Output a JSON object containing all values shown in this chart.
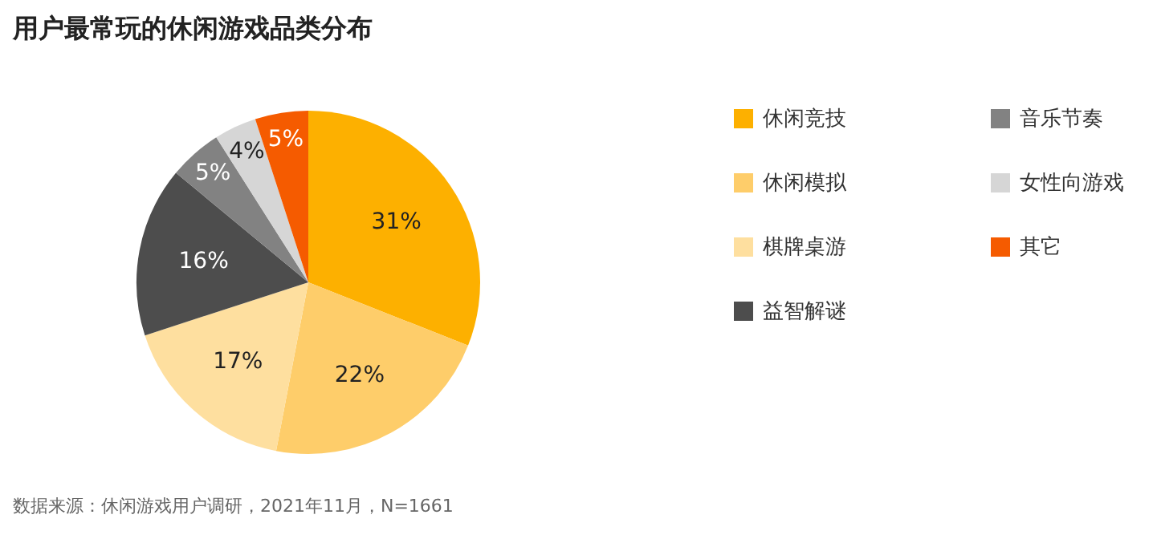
{
  "chart_data": {
    "type": "pie",
    "title": "用户最常玩的休闲游戏品类分布",
    "categories": [
      "休闲竞技",
      "休闲模拟",
      "棋牌桌游",
      "益智解谜",
      "音乐节奏",
      "女性向游戏",
      "其它"
    ],
    "values": [
      31,
      22,
      17,
      16,
      5,
      4,
      5
    ],
    "value_labels": [
      "31%",
      "22%",
      "17%",
      "16%",
      "5%",
      "4%",
      "5%"
    ],
    "colors": [
      "#fdb000",
      "#fecd6a",
      "#fedf9f",
      "#4d4d4d",
      "#828282",
      "#d6d6d6",
      "#f55b00"
    ],
    "legend": "right",
    "annotations": [
      "数据来源：休闲游戏用户调研，2021年11月，N=1661"
    ]
  }
}
